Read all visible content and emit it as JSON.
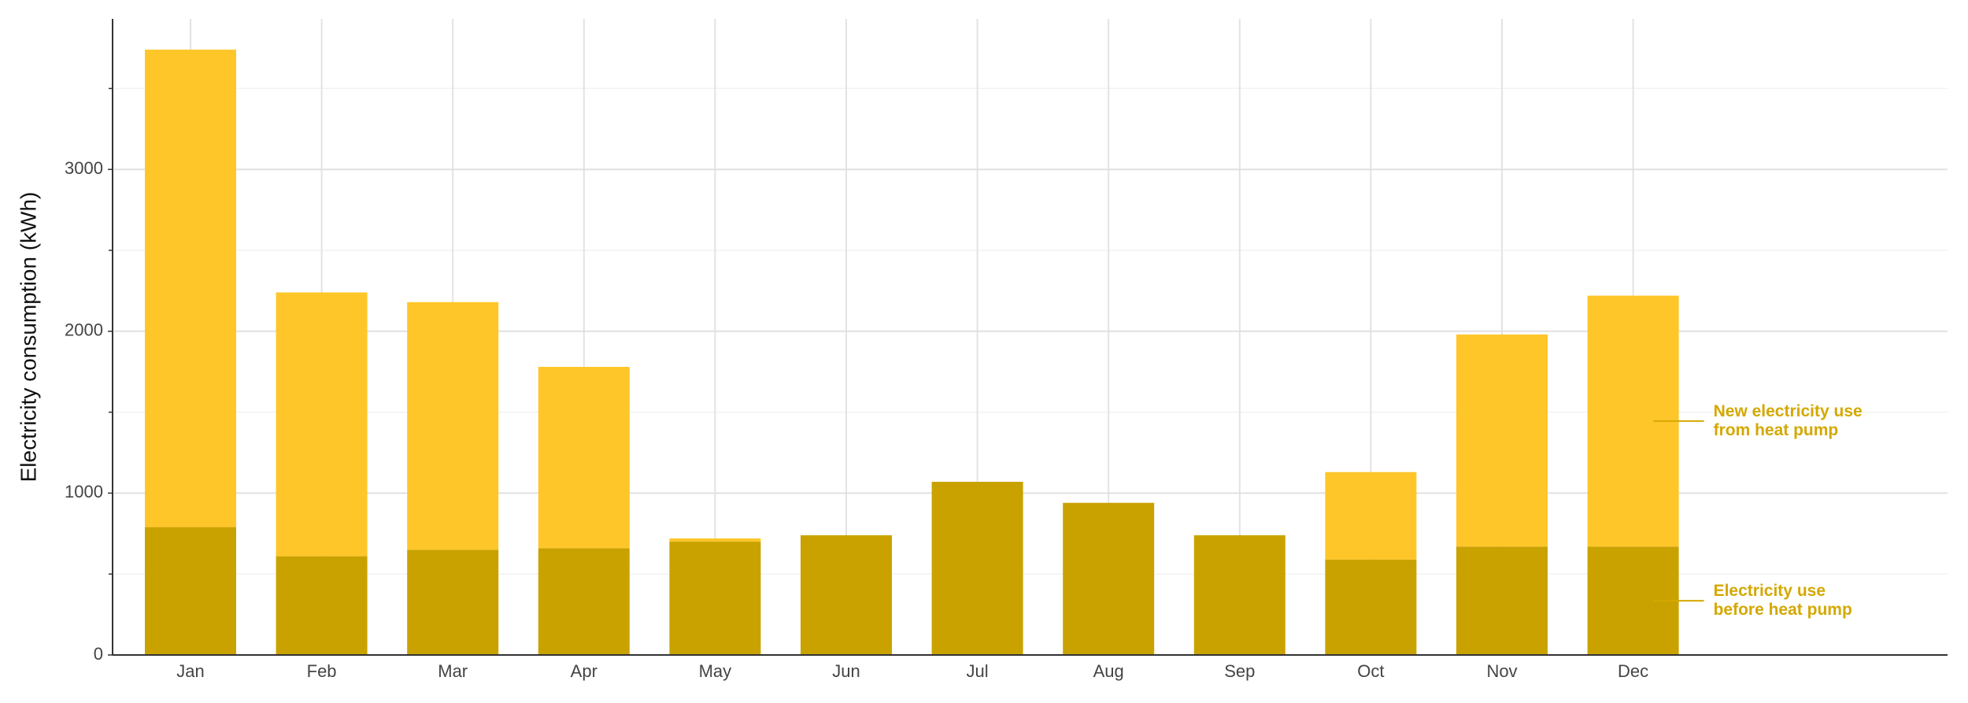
{
  "chart_data": {
    "type": "stacked-bar",
    "y_label": "Electricity consumption (kWh)",
    "categories": [
      "Jan",
      "Feb",
      "Mar",
      "Apr",
      "May",
      "Jun",
      "Jul",
      "Aug",
      "Sep",
      "Oct",
      "Nov",
      "Dec"
    ],
    "series": [
      {
        "name": "Electricity use\nbefore heat pump",
        "color": "#c9a200",
        "values": [
          790,
          610,
          650,
          660,
          700,
          740,
          1070,
          940,
          740,
          590,
          670,
          670
        ]
      },
      {
        "name": "New electricity use\nfrom heat pump",
        "color": "#ffc629",
        "values": [
          2950,
          1630,
          1530,
          1120,
          20,
          0,
          0,
          0,
          0,
          540,
          1310,
          1550
        ]
      }
    ],
    "label_color": "#d4a800",
    "ylim": [
      0,
      3930
    ],
    "yticks": [
      0,
      1000,
      2000,
      3000
    ],
    "minor_yticks": [
      500,
      1500,
      2500,
      3500
    ],
    "grid": true
  }
}
